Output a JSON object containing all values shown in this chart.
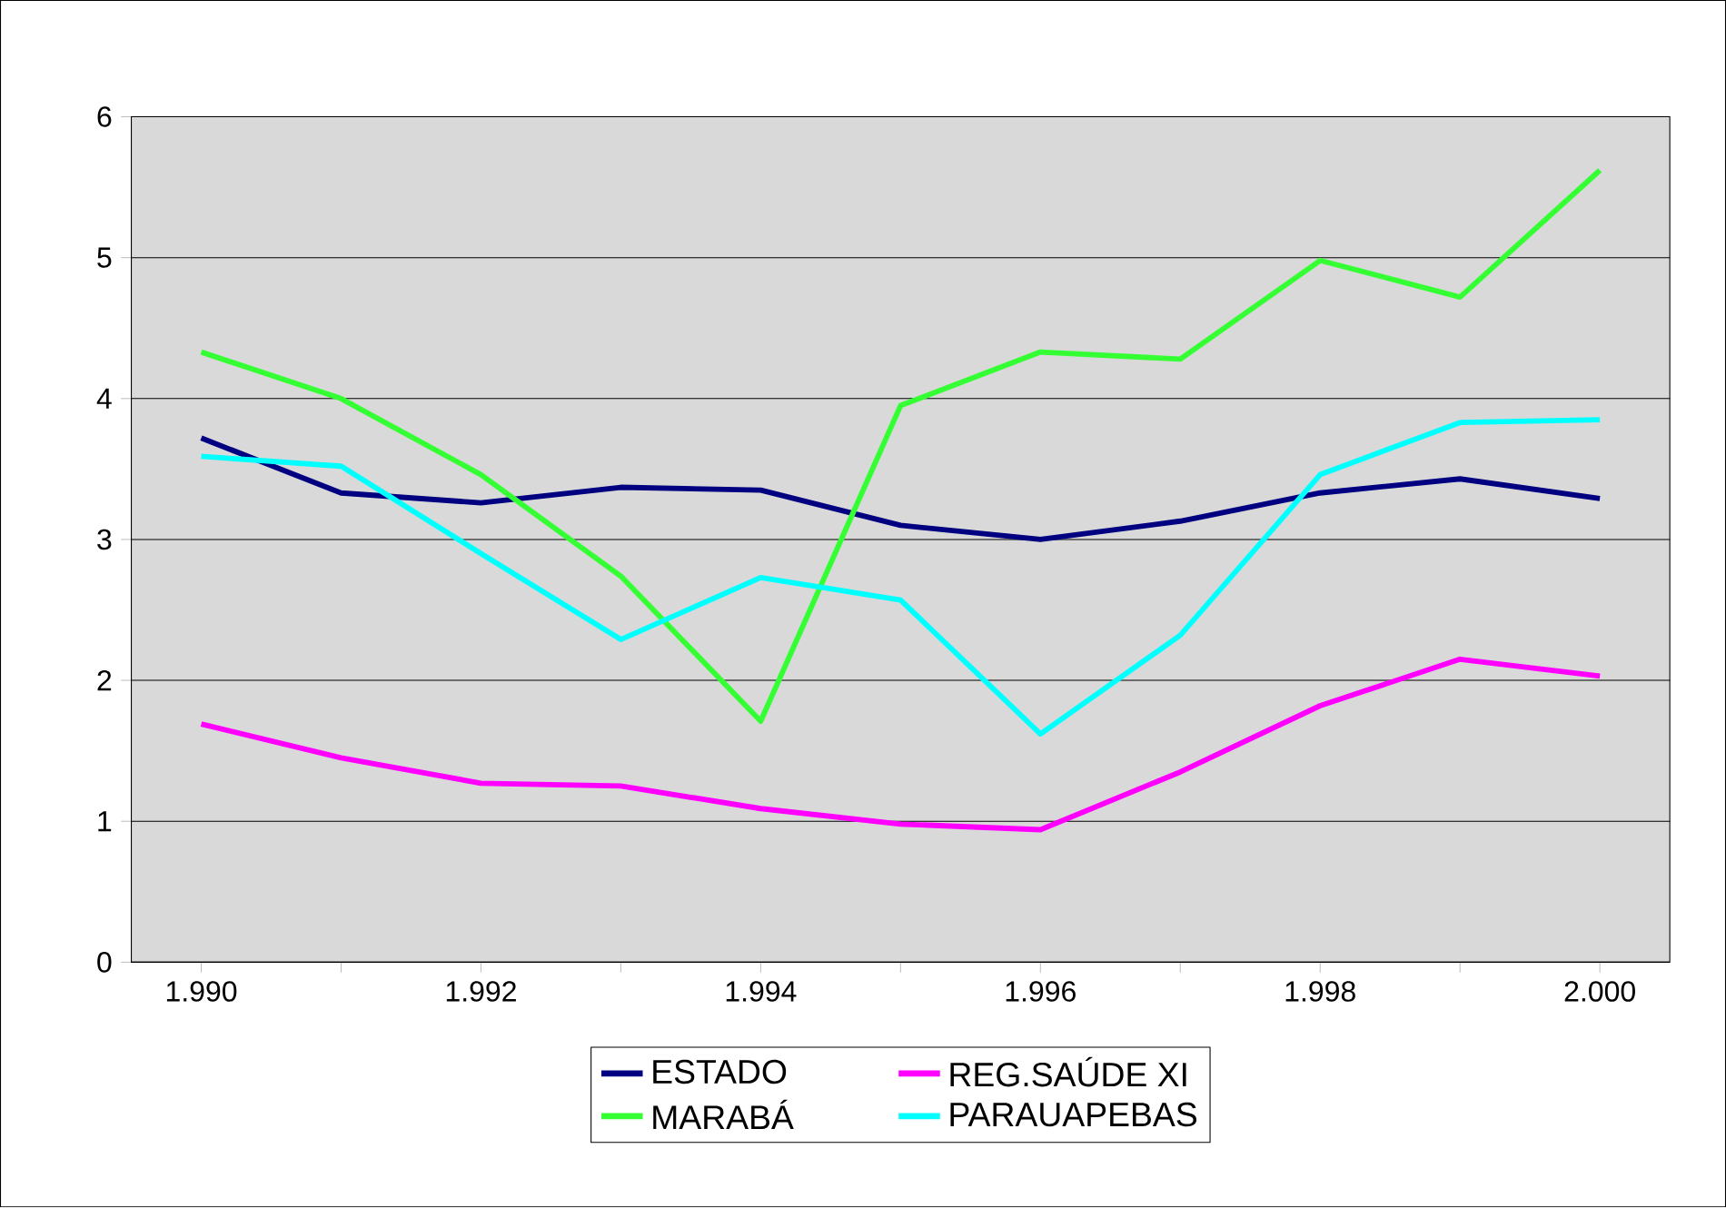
{
  "chart_data": {
    "type": "line",
    "categories": [
      "1.990",
      null,
      "1.992",
      null,
      "1.994",
      null,
      "1.996",
      null,
      "1.998",
      null,
      "2.000"
    ],
    "ylim": [
      0,
      6
    ],
    "yticks": [
      0,
      1,
      2,
      3,
      4,
      5,
      6
    ],
    "grid": "y",
    "legend": "bottom",
    "marker": "none",
    "line_style": "solid",
    "series": [
      {
        "name": "ESTADO",
        "color": "#000080",
        "values": [
          3.72,
          3.33,
          3.26,
          3.37,
          3.35,
          3.1,
          3.0,
          3.13,
          3.33,
          3.43,
          3.29
        ]
      },
      {
        "name": "REG.SAÚDE XI",
        "color": "#ff00ff",
        "values": [
          1.69,
          1.45,
          1.27,
          1.25,
          1.09,
          0.98,
          0.94,
          1.35,
          1.82,
          2.15,
          2.03
        ]
      },
      {
        "name": "MARABÁ",
        "color": "#33ff33",
        "values": [
          4.33,
          4.0,
          3.46,
          2.74,
          1.71,
          3.95,
          4.33,
          4.28,
          4.98,
          4.72,
          5.62
        ]
      },
      {
        "name": "PARAUAPEBAS",
        "color": "#00ffff",
        "values": [
          3.59,
          3.52,
          2.9,
          2.29,
          2.73,
          2.57,
          1.62,
          2.32,
          3.46,
          3.83,
          3.85
        ]
      }
    ]
  }
}
